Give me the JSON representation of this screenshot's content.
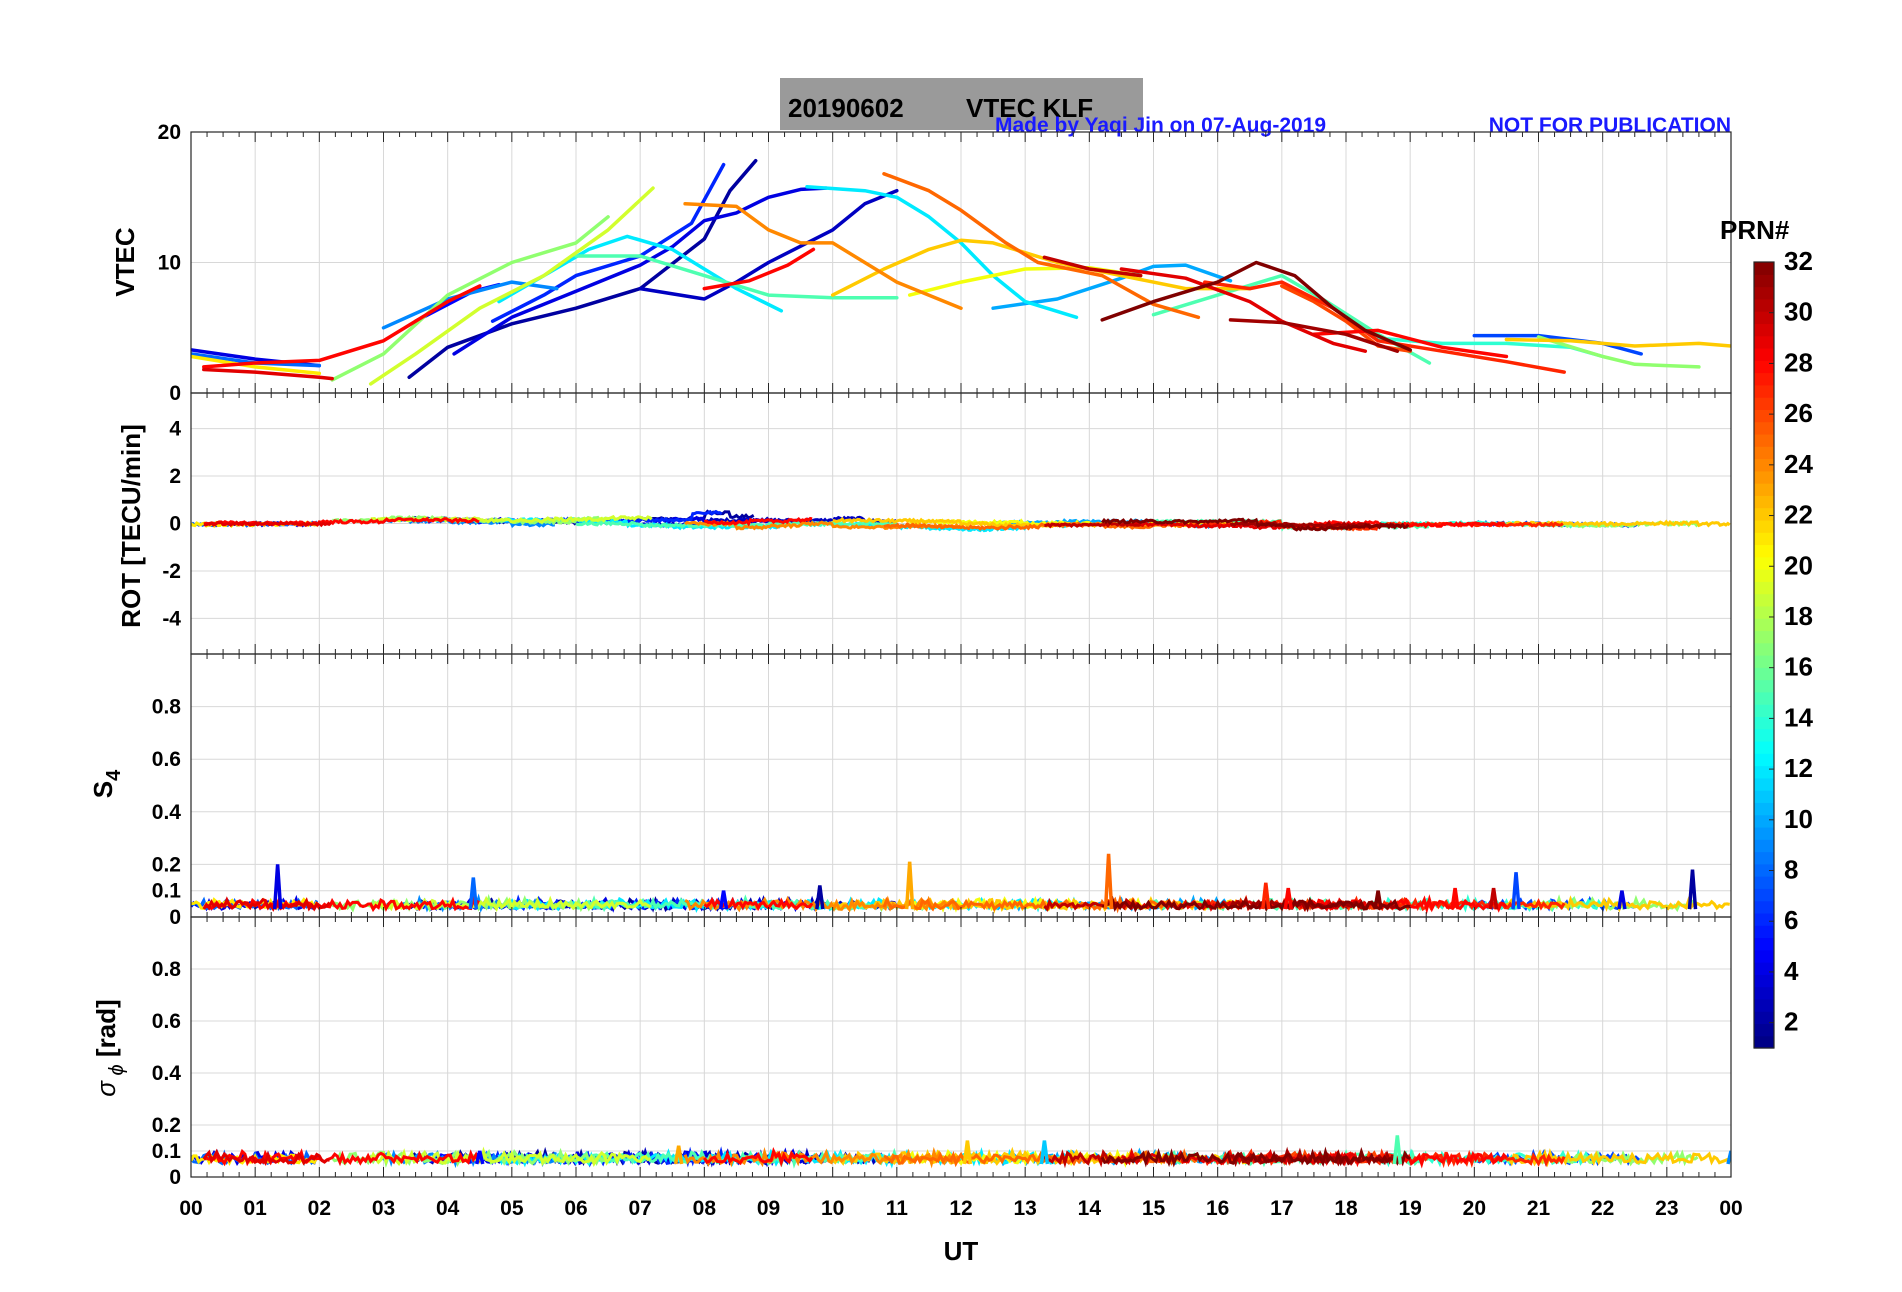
{
  "title": {
    "date": "20190602",
    "label": "VTEC  KLF",
    "credit": "Made by Yaqi Jin on 07-Aug-2019",
    "notice": "NOT FOR PUBLICATION",
    "title_bg_color": "#9a9a9a",
    "credit_color": "#1a1aff"
  },
  "colorbar": {
    "title": "PRN#",
    "ticks": [
      "2",
      "4",
      "6",
      "8",
      "10",
      "12",
      "14",
      "16",
      "18",
      "20",
      "22",
      "24",
      "26",
      "28",
      "30",
      "32"
    ],
    "range": [
      1,
      32
    ],
    "colormap": "jet"
  },
  "x_axis": {
    "title": "UT",
    "ticks": [
      "00",
      "01",
      "02",
      "03",
      "04",
      "05",
      "06",
      "07",
      "08",
      "09",
      "10",
      "11",
      "12",
      "13",
      "14",
      "15",
      "16",
      "17",
      "18",
      "19",
      "20",
      "21",
      "22",
      "23",
      "00"
    ],
    "range_hours": [
      0,
      24
    ]
  },
  "chart_data": [
    {
      "id": "vtec",
      "type": "line",
      "ylabel": "VTEC",
      "ylim": [
        0,
        20
      ],
      "yticks": [
        "0",
        "10",
        "20"
      ],
      "grid": true,
      "series": [
        {
          "prn": 2,
          "points": [
            [
              3.4,
              1.2
            ],
            [
              4.0,
              3.5
            ],
            [
              5.0,
              5.3
            ],
            [
              6.0,
              6.5
            ],
            [
              7.0,
              8.0
            ],
            [
              8.0,
              11.8
            ],
            [
              8.4,
              15.5
            ],
            [
              8.8,
              17.8
            ]
          ]
        },
        {
          "prn": 4,
          "points": [
            [
              0.0,
              3.3
            ],
            [
              1.0,
              2.6
            ],
            [
              2.0,
              2.1
            ]
          ]
        },
        {
          "prn": 4,
          "points": [
            [
              4.1,
              3.0
            ],
            [
              5.0,
              5.8
            ],
            [
              6.0,
              7.8
            ],
            [
              7.0,
              9.8
            ],
            [
              7.5,
              11.2
            ],
            [
              8.0,
              13.2
            ],
            [
              8.5,
              13.8
            ],
            [
              9.0,
              15.0
            ],
            [
              9.5,
              15.6
            ],
            [
              9.9,
              15.7
            ]
          ]
        },
        {
          "prn": 3,
          "points": [
            [
              7.0,
              8.0
            ],
            [
              8.0,
              7.2
            ],
            [
              8.5,
              8.5
            ],
            [
              9.0,
              10.0
            ],
            [
              10.0,
              12.5
            ],
            [
              10.5,
              14.5
            ],
            [
              11.0,
              15.5
            ]
          ]
        },
        {
          "prn": 5,
          "points": [
            [
              3.5,
              5.5
            ],
            [
              4.4,
              7.8
            ],
            [
              4.8,
              8.3
            ]
          ]
        },
        {
          "prn": 6,
          "points": [
            [
              4.7,
              5.5
            ],
            [
              5.5,
              7.5
            ],
            [
              6.0,
              9.0
            ],
            [
              7.0,
              10.5
            ],
            [
              7.8,
              13.0
            ],
            [
              8.3,
              17.5
            ]
          ]
        },
        {
          "prn": 7,
          "points": [
            [
              20.0,
              4.4
            ],
            [
              21.0,
              4.4
            ],
            [
              22.0,
              3.8
            ],
            [
              22.6,
              3.0
            ]
          ]
        },
        {
          "prn": 8,
          "points": [
            [
              0.0,
              3.0
            ],
            [
              1.0,
              2.3
            ],
            [
              2.0,
              2.1
            ]
          ]
        },
        {
          "prn": 9,
          "points": [
            [
              3.0,
              5.0
            ],
            [
              4.0,
              7.2
            ],
            [
              5.0,
              8.5
            ],
            [
              5.7,
              8.0
            ]
          ]
        },
        {
          "prn": 10,
          "points": [
            [
              12.5,
              6.5
            ],
            [
              13.5,
              7.2
            ],
            [
              14.5,
              8.8
            ],
            [
              15.0,
              9.7
            ],
            [
              15.5,
              9.8
            ],
            [
              16.2,
              8.6
            ]
          ]
        },
        {
          "prn": 12,
          "points": [
            [
              4.8,
              7.0
            ],
            [
              5.5,
              9.0
            ],
            [
              6.2,
              11.0
            ],
            [
              6.8,
              12.0
            ],
            [
              7.5,
              11.0
            ],
            [
              8.5,
              8.0
            ],
            [
              9.2,
              6.3
            ]
          ]
        },
        {
          "prn": 12,
          "points": [
            [
              9.6,
              15.8
            ],
            [
              10.5,
              15.5
            ],
            [
              11.0,
              15.0
            ],
            [
              11.5,
              13.5
            ],
            [
              12.0,
              11.5
            ],
            [
              12.5,
              9.0
            ],
            [
              13.0,
              7.0
            ],
            [
              13.8,
              5.8
            ]
          ]
        },
        {
          "prn": 14,
          "points": [
            [
              18.5,
              4.2
            ],
            [
              19.5,
              3.8
            ],
            [
              20.5,
              3.8
            ],
            [
              21.5,
              3.5
            ],
            [
              22.0,
              2.8
            ]
          ]
        },
        {
          "prn": 15,
          "points": [
            [
              6.0,
              10.5
            ],
            [
              7.0,
              10.5
            ],
            [
              8.0,
              9.0
            ],
            [
              9.0,
              7.5
            ],
            [
              10.0,
              7.3
            ],
            [
              11.0,
              7.3
            ]
          ]
        },
        {
          "prn": 15,
          "points": [
            [
              15.0,
              6.0
            ],
            [
              16.0,
              7.5
            ],
            [
              17.0,
              9.0
            ],
            [
              17.7,
              7.0
            ],
            [
              18.5,
              4.5
            ],
            [
              19.3,
              2.3
            ]
          ]
        },
        {
          "prn": 17,
          "points": [
            [
              2.2,
              1.0
            ],
            [
              3.0,
              3.0
            ],
            [
              4.0,
              7.5
            ],
            [
              5.0,
              10.0
            ],
            [
              6.0,
              11.5
            ],
            [
              6.5,
              13.5
            ]
          ]
        },
        {
          "prn": 17,
          "points": [
            [
              21.0,
              4.3
            ],
            [
              22.0,
              2.8
            ],
            [
              22.5,
              2.2
            ],
            [
              23.5,
              2.0
            ]
          ]
        },
        {
          "prn": 19,
          "points": [
            [
              2.8,
              0.7
            ],
            [
              3.5,
              3.0
            ],
            [
              4.5,
              6.5
            ],
            [
              5.5,
              9.0
            ],
            [
              6.5,
              12.5
            ],
            [
              7.2,
              15.7
            ]
          ]
        },
        {
          "prn": 20,
          "points": [
            [
              11.2,
              7.5
            ],
            [
              12.0,
              8.5
            ],
            [
              13.0,
              9.5
            ],
            [
              14.0,
              9.6
            ],
            [
              14.8,
              9.0
            ]
          ]
        },
        {
          "prn": 21,
          "points": [
            [
              0.0,
              2.8
            ],
            [
              1.0,
              2.0
            ],
            [
              2.0,
              1.5
            ]
          ]
        },
        {
          "prn": 22,
          "points": [
            [
              10.0,
              7.5
            ],
            [
              10.8,
              9.5
            ],
            [
              11.5,
              11.0
            ],
            [
              12.0,
              11.7
            ],
            [
              12.5,
              11.5
            ],
            [
              13.5,
              10.0
            ],
            [
              14.5,
              9.0
            ],
            [
              15.5,
              8.0
            ],
            [
              16.5,
              8.0
            ]
          ]
        },
        {
          "prn": 22,
          "points": [
            [
              20.5,
              4.1
            ],
            [
              21.5,
              4.0
            ],
            [
              22.5,
              3.6
            ],
            [
              23.5,
              3.8
            ],
            [
              24.0,
              3.6
            ]
          ]
        },
        {
          "prn": 24,
          "points": [
            [
              7.7,
              14.5
            ],
            [
              8.5,
              14.3
            ],
            [
              9.0,
              12.5
            ],
            [
              9.5,
              11.5
            ],
            [
              10.0,
              11.5
            ],
            [
              11.0,
              8.5
            ],
            [
              12.0,
              6.5
            ]
          ]
        },
        {
          "prn": 25,
          "points": [
            [
              10.8,
              16.8
            ],
            [
              11.5,
              15.5
            ],
            [
              12.0,
              14.0
            ],
            [
              12.7,
              11.5
            ],
            [
              13.2,
              10.0
            ],
            [
              14.2,
              9.0
            ],
            [
              15.0,
              6.8
            ],
            [
              15.7,
              5.8
            ]
          ]
        },
        {
          "prn": 26,
          "points": [
            [
              17.0,
              8.2
            ],
            [
              17.5,
              7.0
            ],
            [
              18.0,
              5.5
            ],
            [
              18.5,
              3.6
            ],
            [
              19.0,
              3.2
            ]
          ]
        },
        {
          "prn": 27,
          "points": [
            [
              15.8,
              8.5
            ],
            [
              16.5,
              8.0
            ],
            [
              17.0,
              8.5
            ],
            [
              17.8,
              6.5
            ],
            [
              18.5,
              4.0
            ],
            [
              19.5,
              3.2
            ],
            [
              20.5,
              2.4
            ],
            [
              21.4,
              1.6
            ]
          ]
        },
        {
          "prn": 28,
          "points": [
            [
              0.2,
              2.0
            ],
            [
              1.0,
              2.3
            ],
            [
              2.0,
              2.5
            ],
            [
              3.0,
              4.0
            ],
            [
              4.0,
              7.0
            ],
            [
              4.5,
              8.2
            ]
          ]
        },
        {
          "prn": 28,
          "points": [
            [
              8.0,
              8.0
            ],
            [
              8.7,
              8.6
            ],
            [
              9.3,
              9.8
            ],
            [
              9.7,
              11.0
            ]
          ]
        },
        {
          "prn": 28,
          "points": [
            [
              17.5,
              4.5
            ],
            [
              18.5,
              4.8
            ],
            [
              19.5,
              3.5
            ],
            [
              20.5,
              2.8
            ]
          ]
        },
        {
          "prn": 29,
          "points": [
            [
              0.2,
              1.8
            ],
            [
              1.0,
              1.6
            ],
            [
              2.0,
              1.2
            ],
            [
              2.2,
              1.1
            ]
          ]
        },
        {
          "prn": 29,
          "points": [
            [
              14.5,
              9.5
            ],
            [
              15.5,
              8.8
            ],
            [
              16.5,
              7.0
            ],
            [
              17.0,
              5.5
            ],
            [
              17.8,
              3.8
            ],
            [
              18.3,
              3.2
            ]
          ]
        },
        {
          "prn": 30,
          "points": [
            [
              13.3,
              10.4
            ],
            [
              14.0,
              9.5
            ],
            [
              14.8,
              9.0
            ]
          ]
        },
        {
          "prn": 31,
          "points": [
            [
              16.2,
              5.6
            ],
            [
              17.0,
              5.4
            ],
            [
              18.0,
              4.5
            ],
            [
              18.8,
              3.2
            ]
          ]
        },
        {
          "prn": 32,
          "points": [
            [
              14.2,
              5.6
            ],
            [
              15.0,
              7.0
            ],
            [
              16.0,
              8.5
            ],
            [
              16.6,
              10.0
            ],
            [
              17.2,
              9.0
            ],
            [
              17.8,
              6.5
            ],
            [
              18.3,
              4.8
            ],
            [
              19.0,
              3.3
            ]
          ]
        }
      ]
    },
    {
      "id": "rot",
      "type": "line",
      "ylabel": "ROT [TECU/min]",
      "ylim": [
        -5.5,
        5.5
      ],
      "yticks": [
        "-4",
        "-2",
        "0",
        "2",
        "4"
      ],
      "grid": true,
      "note": "all PRN traces stay near 0, largest excursions about +0.5 TECU/min near 07-10 UT"
    },
    {
      "id": "s4",
      "type": "line",
      "ylabel": "S4",
      "ylim": [
        0,
        1
      ],
      "yticks": [
        "0",
        "0.1",
        "0.2",
        "0.4",
        "0.6",
        "0.8"
      ],
      "grid": true,
      "baseline_range": [
        0.02,
        0.07
      ],
      "spikes": [
        {
          "t": 1.35,
          "value": 0.2,
          "prn": 4
        },
        {
          "t": 4.4,
          "value": 0.15,
          "prn": 8
        },
        {
          "t": 8.3,
          "value": 0.1,
          "prn": 5
        },
        {
          "t": 9.8,
          "value": 0.12,
          "prn": 2
        },
        {
          "t": 11.2,
          "value": 0.21,
          "prn": 23
        },
        {
          "t": 14.3,
          "value": 0.24,
          "prn": 25
        },
        {
          "t": 16.75,
          "value": 0.13,
          "prn": 27
        },
        {
          "t": 17.1,
          "value": 0.11,
          "prn": 28
        },
        {
          "t": 18.5,
          "value": 0.1,
          "prn": 32
        },
        {
          "t": 19.7,
          "value": 0.11,
          "prn": 28
        },
        {
          "t": 20.3,
          "value": 0.11,
          "prn": 30
        },
        {
          "t": 20.65,
          "value": 0.17,
          "prn": 7
        },
        {
          "t": 22.3,
          "value": 0.1,
          "prn": 4
        },
        {
          "t": 23.4,
          "value": 0.18,
          "prn": 2
        }
      ]
    },
    {
      "id": "sigma_phi",
      "type": "line",
      "ylabel": "σ ϕ [rad]",
      "ylim": [
        0,
        1
      ],
      "yticks": [
        "0",
        "0.1",
        "0.2",
        "0.4",
        "0.6",
        "0.8"
      ],
      "grid": true,
      "baseline_range": [
        0.04,
        0.1
      ],
      "spikes": [
        {
          "t": 4.5,
          "value": 0.1,
          "prn": 5
        },
        {
          "t": 7.6,
          "value": 0.12,
          "prn": 23
        },
        {
          "t": 12.1,
          "value": 0.14,
          "prn": 22
        },
        {
          "t": 13.3,
          "value": 0.14,
          "prn": 11
        },
        {
          "t": 18.8,
          "value": 0.16,
          "prn": 15
        },
        {
          "t": 24.0,
          "value": 0.1,
          "prn": 9
        }
      ]
    }
  ]
}
